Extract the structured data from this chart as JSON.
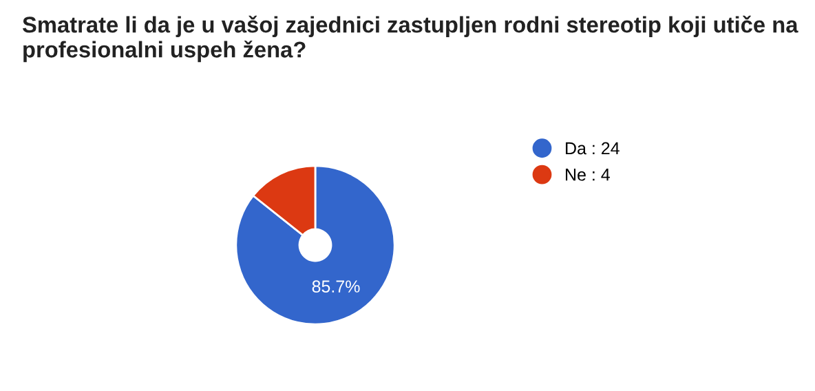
{
  "chart_data": {
    "type": "donut",
    "title": "Smatrate li da je u vašoj zajednici zastupljen rodni stereotip koji utiče na profesionalni uspeh žena?",
    "categories": [
      "Da : 24",
      "Ne : 4"
    ],
    "values": [
      85.7,
      14.3
    ],
    "colors": [
      "#3366cc",
      "#dc3912"
    ],
    "value_labels": [
      "85.7%",
      null
    ],
    "legend": "right"
  }
}
